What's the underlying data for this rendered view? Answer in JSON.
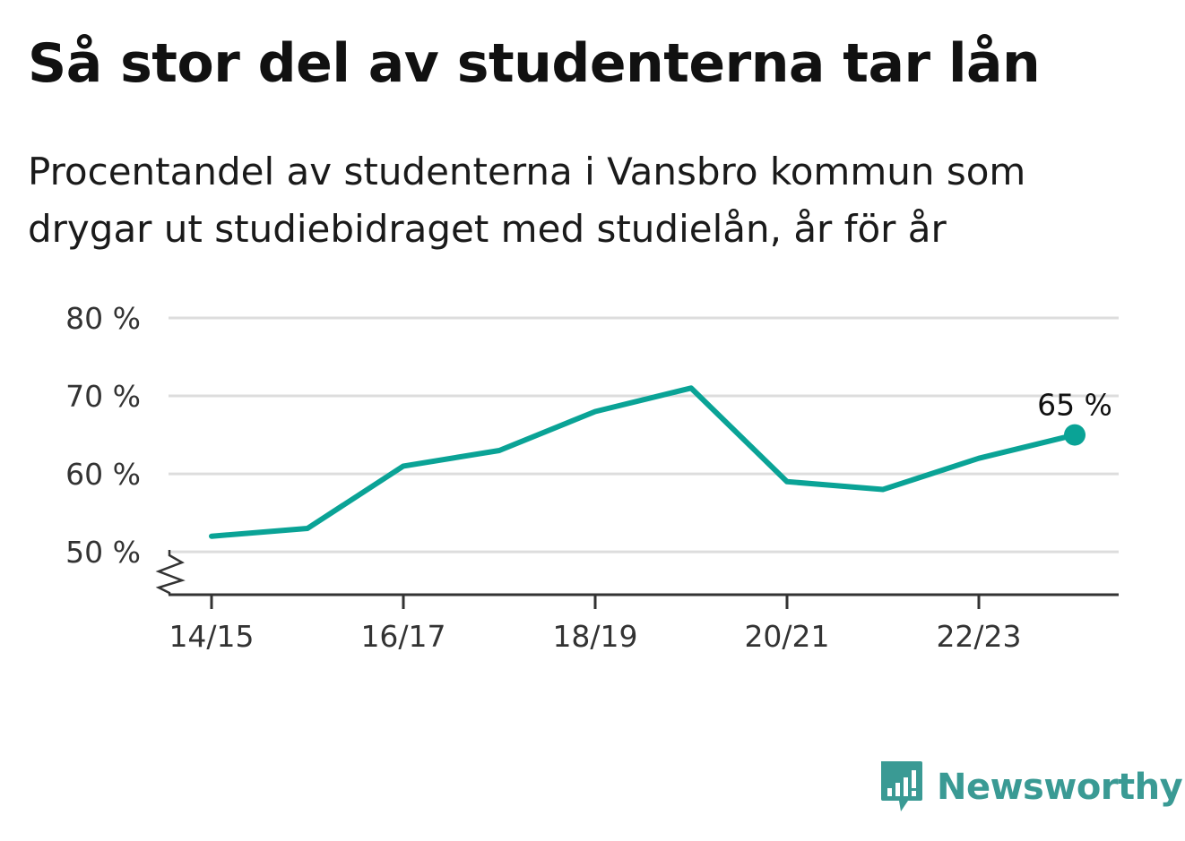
{
  "header": {
    "title": "Så stor del av studenterna tar lån",
    "subtitle": "Procentandel av studenterna i Vansbro kommun som drygar ut studiebidraget med studielån, år för år"
  },
  "brand": {
    "name": "Newsworthy",
    "color": "#3a9a94",
    "icon": "newsworthy-chart-icon"
  },
  "chart_data": {
    "type": "line",
    "x": [
      "14/15",
      "15/16",
      "16/17",
      "17/18",
      "18/19",
      "19/20",
      "20/21",
      "21/22",
      "22/23",
      "23/24"
    ],
    "series": [
      {
        "values": [
          52,
          53,
          61,
          63,
          68,
          71,
          59,
          58,
          62,
          65
        ],
        "color": "#0aa396"
      }
    ],
    "x_tick_labels": [
      "14/15",
      "16/17",
      "18/19",
      "20/21",
      "22/23"
    ],
    "y_ticks": [
      50,
      60,
      70,
      80
    ],
    "y_tick_labels": [
      "50 %",
      "60 %",
      "70 %",
      "80 %"
    ],
    "ylim": [
      44.5,
      80
    ],
    "y_axis_break": true,
    "grid": true,
    "last_point_label": "65 %"
  }
}
